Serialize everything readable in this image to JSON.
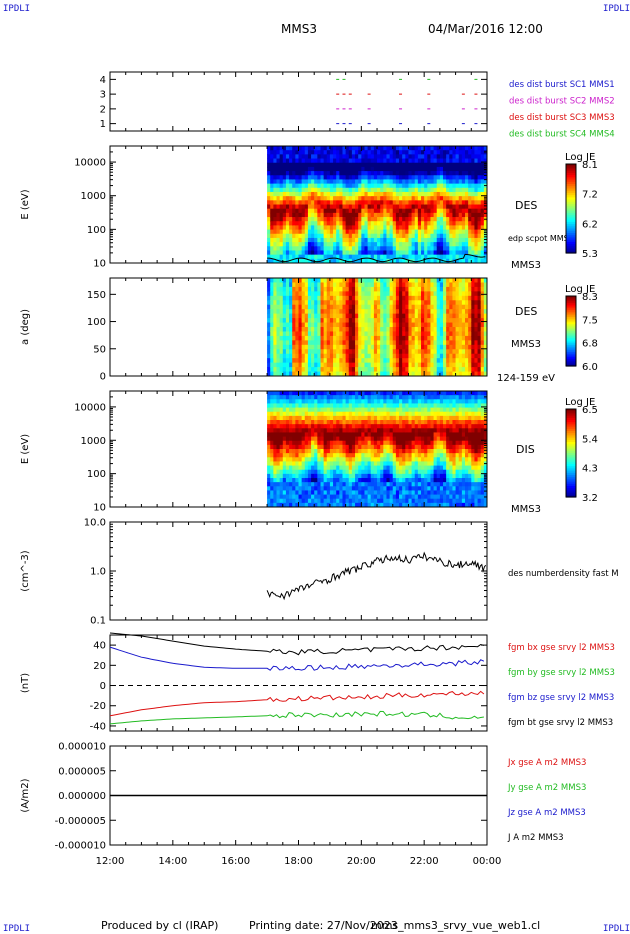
{
  "header": {
    "corner_label": "IPDLI",
    "spacecraft": "MMS3",
    "datetime": "04/Mar/2016 12:00"
  },
  "footer": {
    "produced_by": "Produced by cl (IRAP)",
    "printing_date": "Printing date: 27/Nov/2023",
    "script_name": "mms_mms3_srvy_vue_web1.cl"
  },
  "time_axis": {
    "ticks": [
      "12:00",
      "14:00",
      "16:00",
      "18:00",
      "20:00",
      "22:00",
      "00:00"
    ],
    "start_hour": 12,
    "end_hour": 24,
    "data_start_hour": 17
  },
  "colors": {
    "mms1": "#1a1acc",
    "mms2": "#cc22cc",
    "mms3": "#dd1111",
    "mms4": "#22bb22",
    "black": "#000000"
  },
  "chart_data": [
    {
      "id": "burst-availability",
      "type": "scatter",
      "yticks": [
        "1",
        "2",
        "3",
        "4"
      ],
      "ylim": [
        0.5,
        4.5
      ],
      "series": [
        {
          "name": "des dist burst SC1 MMS1",
          "color": "#1a1acc",
          "y": 1,
          "x_hours": [
            19.2,
            19.4,
            19.6,
            20.2,
            21.2,
            22.1,
            23.2,
            23.6
          ]
        },
        {
          "name": "des dist burst SC2 MMS2",
          "color": "#cc22cc",
          "y": 2,
          "x_hours": [
            19.2,
            19.4,
            19.6,
            20.2,
            21.2,
            22.1,
            23.2,
            23.6
          ]
        },
        {
          "name": "des dist burst SC3 MMS3",
          "color": "#dd1111",
          "y": 3,
          "x_hours": [
            19.2,
            19.4,
            19.6,
            20.2,
            21.2,
            22.1,
            23.2,
            23.6
          ]
        },
        {
          "name": "des dist burst SC4 MMS4",
          "color": "#22bb22",
          "y": 4,
          "x_hours": [
            19.2,
            19.4,
            21.2,
            22.1,
            23.6
          ]
        }
      ]
    },
    {
      "id": "des-energy-spectrogram",
      "type": "heatmap",
      "ylabel": "E (eV)",
      "yscale": "log",
      "ylim": [
        10,
        30000
      ],
      "yticks": [
        "10",
        "100",
        "1000",
        "10000"
      ],
      "label": "DES",
      "sublabel": "MMS3",
      "overlay_label": "edp scpot MMS3",
      "colorbar": {
        "title": "Log JE",
        "ticks": [
          "8.1",
          "7.2",
          "6.2",
          "5.3"
        ]
      }
    },
    {
      "id": "des-pitch-angle",
      "type": "heatmap",
      "ylabel": "a (deg)",
      "ylim": [
        0,
        180
      ],
      "yticks": [
        "0",
        "50",
        "100",
        "150"
      ],
      "label": "DES",
      "sublabel": "MMS3",
      "energy_range": "124-159 eV",
      "colorbar": {
        "title": "Log JE",
        "ticks": [
          "8.3",
          "7.5",
          "6.8",
          "6.0"
        ]
      }
    },
    {
      "id": "dis-energy-spectrogram",
      "type": "heatmap",
      "ylabel": "E (eV)",
      "yscale": "log",
      "ylim": [
        10,
        30000
      ],
      "yticks": [
        "10",
        "100",
        "1000",
        "10000"
      ],
      "label": "DIS",
      "sublabel": "MMS3",
      "colorbar": {
        "title": "Log JE",
        "ticks": [
          "6.5",
          "5.4",
          "4.3",
          "3.2"
        ]
      }
    },
    {
      "id": "number-density",
      "type": "line",
      "ylabel": "(cm^-3)",
      "yscale": "log",
      "ylim": [
        0.1,
        10
      ],
      "yticks": [
        "0.1",
        "1.0",
        "10.0"
      ],
      "series": [
        {
          "name": "des numberdensity fast M",
          "color": "#000000",
          "x_hours": [
            17.0,
            17.5,
            18.0,
            18.5,
            19.0,
            19.5,
            20.0,
            20.5,
            21.0,
            21.5,
            22.0,
            22.5,
            23.0,
            23.5,
            24.0
          ],
          "values": [
            0.35,
            0.32,
            0.42,
            0.55,
            0.7,
            0.95,
            1.2,
            1.6,
            1.9,
            1.7,
            2.0,
            1.6,
            1.3,
            1.5,
            1.1
          ]
        }
      ]
    },
    {
      "id": "magnetic-field",
      "type": "line",
      "ylabel": "(nT)",
      "ylim": [
        -45,
        50
      ],
      "yticks": [
        "-40",
        "-20",
        "0",
        "20",
        "40"
      ],
      "series": [
        {
          "name": "fgm bx gse srvy l2 MMS3",
          "color": "#dd1111",
          "x_hours": [
            12,
            13,
            14,
            15,
            16,
            17,
            18,
            19,
            20,
            21,
            22,
            23,
            24
          ],
          "values": [
            -30,
            -24,
            -20,
            -17,
            -16,
            -14,
            -13,
            -12,
            -12,
            -10,
            -9,
            -8,
            -7
          ]
        },
        {
          "name": "fgm by gse srvy l2 MMS3",
          "color": "#22bb22",
          "x_hours": [
            12,
            13,
            14,
            15,
            16,
            17,
            18,
            19,
            20,
            21,
            22,
            23,
            24
          ],
          "values": [
            -38,
            -35,
            -33,
            -32,
            -31,
            -30,
            -29,
            -29,
            -28,
            -28,
            -29,
            -31,
            -33
          ]
        },
        {
          "name": "fgm bz gse srvy l2 MMS3",
          "color": "#1a1acc",
          "x_hours": [
            12,
            13,
            14,
            15,
            16,
            17,
            18,
            19,
            20,
            21,
            22,
            23,
            24
          ],
          "values": [
            38,
            28,
            22,
            18,
            17,
            17,
            17,
            18,
            19,
            20,
            21,
            22,
            24
          ]
        },
        {
          "name": "fgm bt gse srvy l2 MMS3",
          "color": "#000000",
          "x_hours": [
            12,
            13,
            14,
            15,
            16,
            17,
            18,
            19,
            20,
            21,
            22,
            23,
            24
          ],
          "values": [
            52,
            49,
            44,
            39,
            36,
            34,
            33,
            34,
            35,
            36,
            37,
            38,
            40
          ]
        }
      ]
    },
    {
      "id": "current-density",
      "type": "line",
      "ylabel": "(A/m2)",
      "ylim": [
        -0.0001,
        0.0001
      ],
      "yticks": [
        "-0.000010",
        "-0.000005",
        "0.000000",
        "0.000005",
        "0.000010"
      ],
      "series": [
        {
          "name": "Jx gse A m2 MMS3",
          "color": "#dd1111",
          "x_hours": [
            12,
            24
          ],
          "values": [
            0,
            0
          ]
        },
        {
          "name": "Jy gse A m2 MMS3",
          "color": "#22bb22",
          "x_hours": [
            12,
            24
          ],
          "values": [
            0,
            0
          ]
        },
        {
          "name": "Jz gse A m2 MMS3",
          "color": "#1a1acc",
          "x_hours": [
            12,
            24
          ],
          "values": [
            0,
            0
          ]
        },
        {
          "name": "J A m2 MMS3",
          "color": "#000000",
          "x_hours": [
            12,
            24
          ],
          "values": [
            0,
            0
          ]
        }
      ]
    }
  ]
}
